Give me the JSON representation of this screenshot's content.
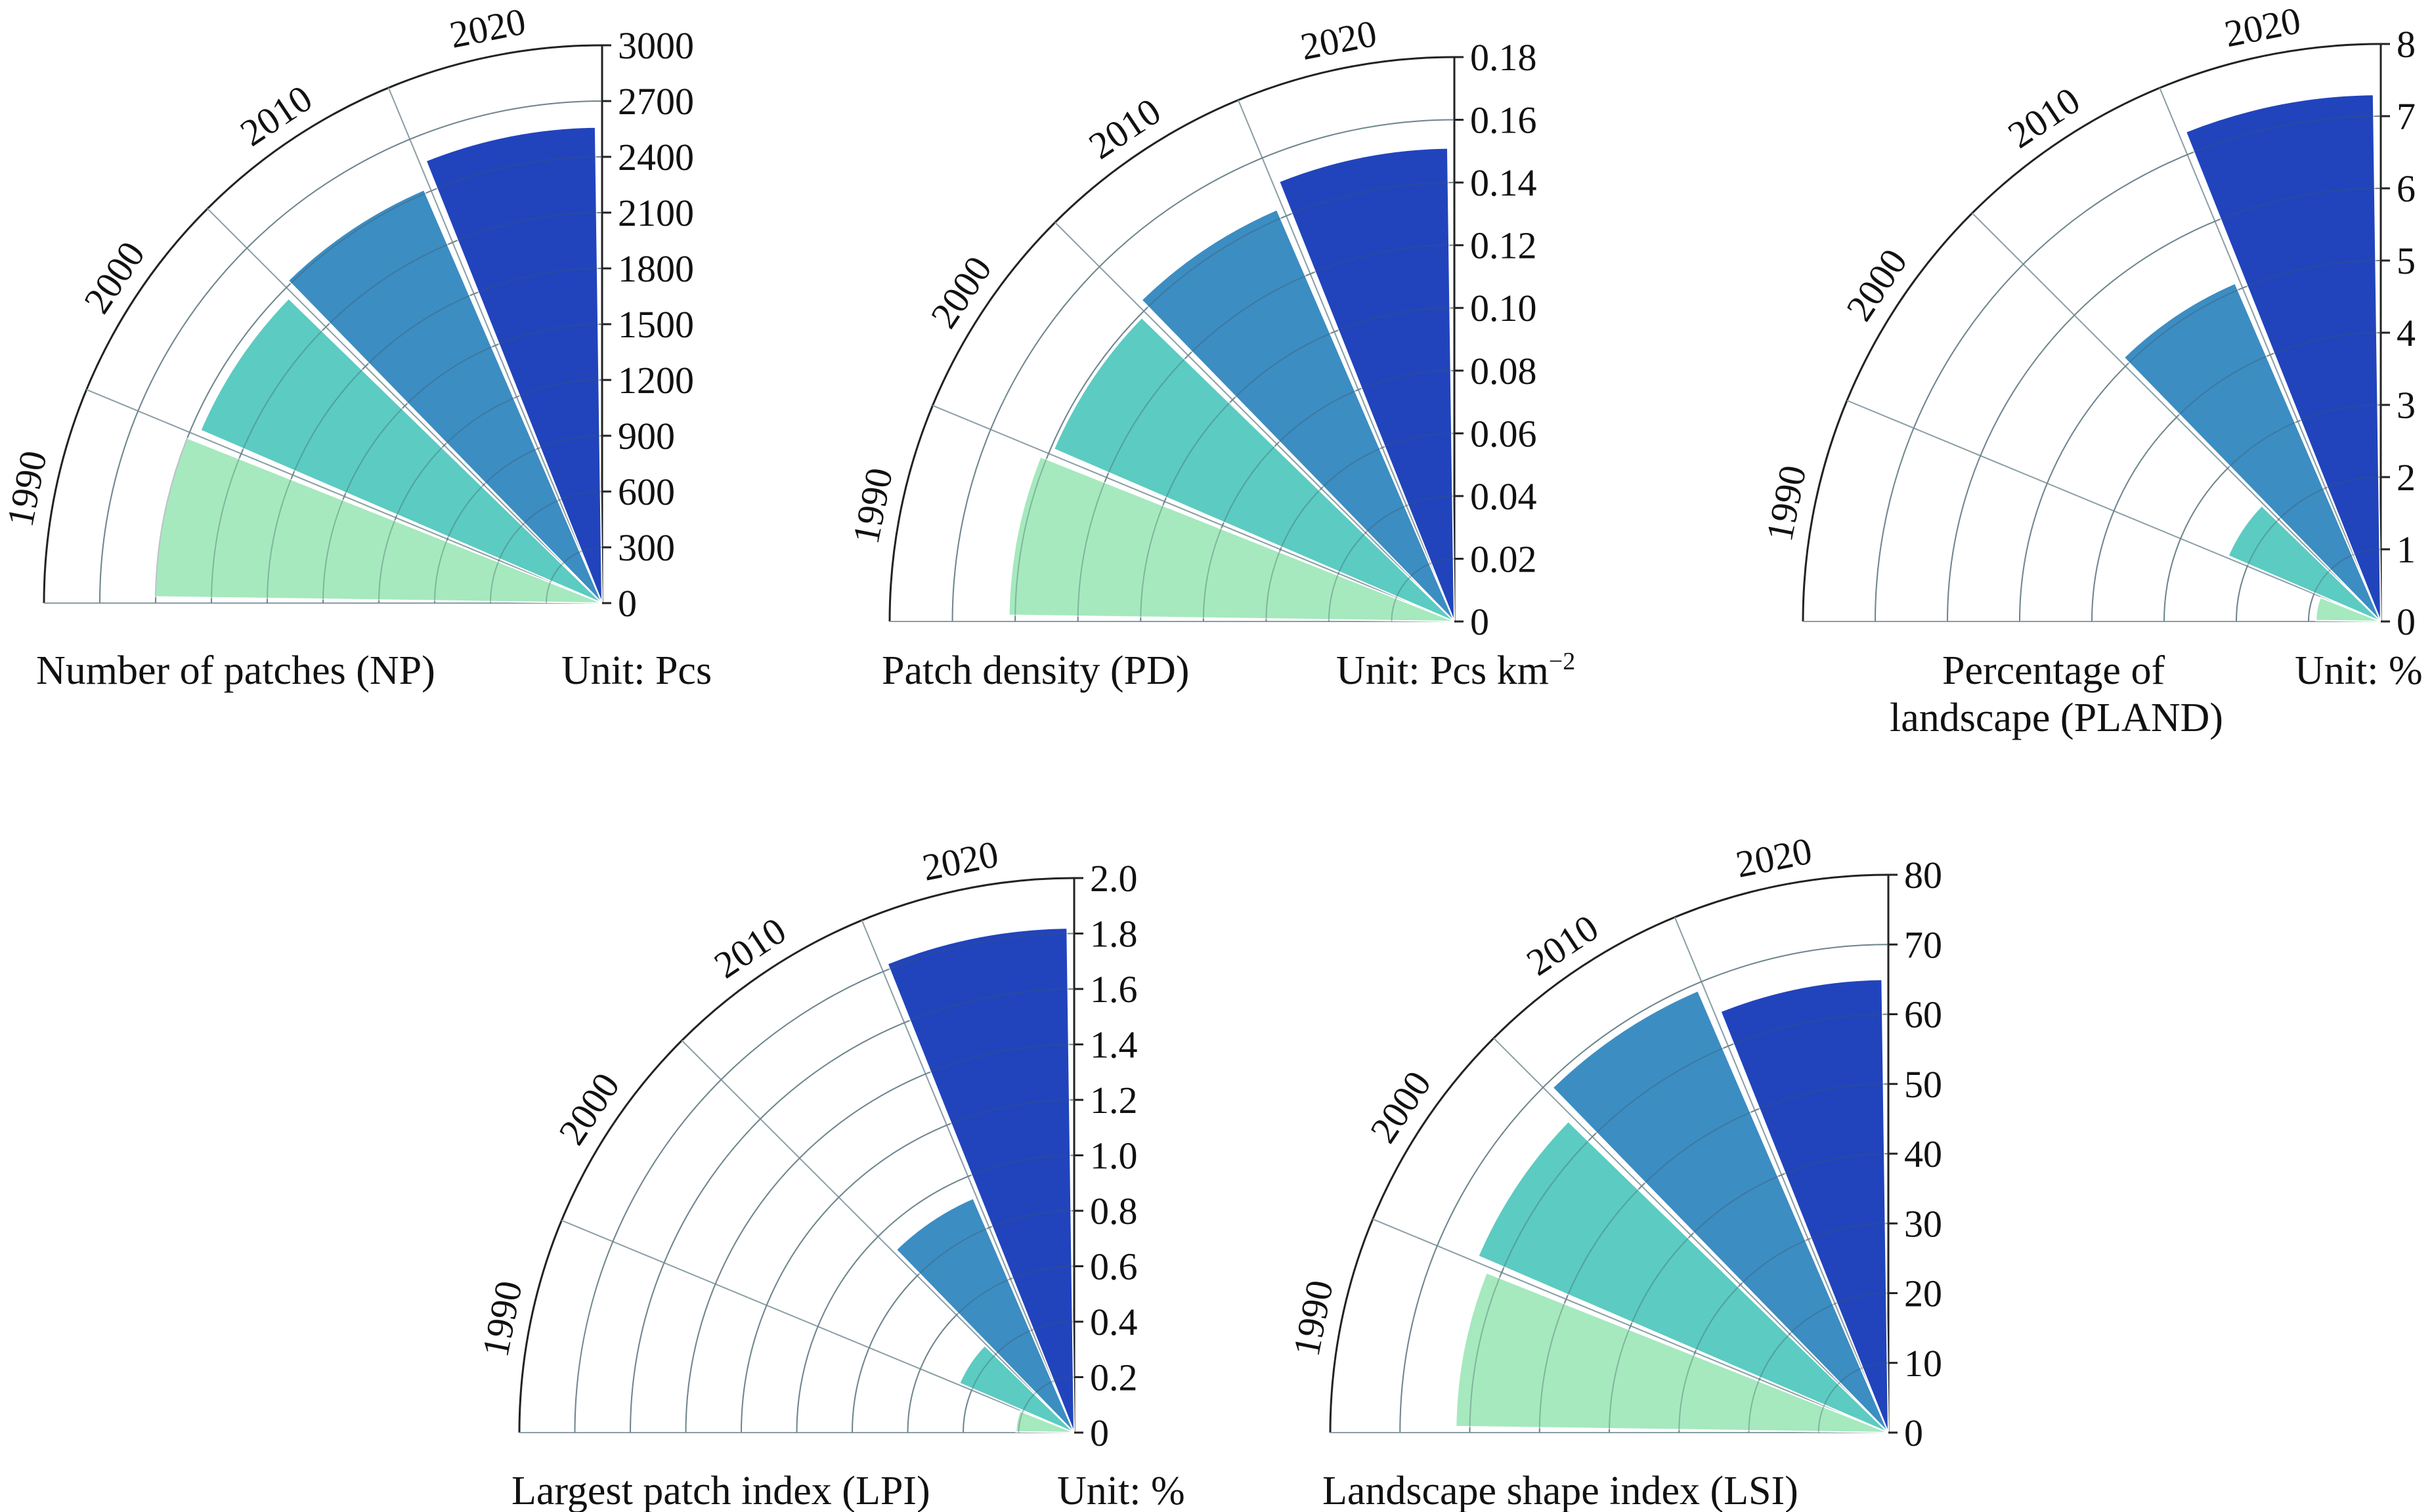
{
  "colors": {
    "1990": "#a6e9be",
    "2000": "#5ccbc2",
    "2010": "#3c8dc2",
    "2020": "#2144bd",
    "grid": "#8a9ea5",
    "axis": "#222222"
  },
  "chart_data": [
    {
      "type": "radial-bar",
      "title": "Number of patches (NP)",
      "unit": "Unit: Pcs",
      "unit_sup": "",
      "categories": [
        "1990",
        "2000",
        "2010",
        "2020"
      ],
      "values": [
        2400,
        2350,
        2420,
        2560
      ],
      "ylim": [
        0,
        3000
      ],
      "ticks": [
        "0",
        "300",
        "600",
        "900",
        "1200",
        "1500",
        "1800",
        "2100",
        "2400",
        "2700",
        "3000"
      ],
      "grid": true
    },
    {
      "type": "radial-bar",
      "title": "Patch density (PD)",
      "unit": "Unit: Pcs km",
      "unit_sup": "−2",
      "categories": [
        "1990",
        "2000",
        "2010",
        "2020"
      ],
      "values": [
        0.142,
        0.139,
        0.143,
        0.151
      ],
      "ylim": [
        0,
        0.18
      ],
      "ticks": [
        "0",
        "0.02",
        "0.04",
        "0.06",
        "0.08",
        "0.10",
        "0.12",
        "0.14",
        "0.16",
        "0.18"
      ],
      "grid": true
    },
    {
      "type": "radial-bar",
      "title": "Percentage of",
      "title_line2": "landscape (PLAND)",
      "unit": "Unit: %",
      "unit_sup": "",
      "categories": [
        "1990",
        "2000",
        "2010",
        "2020"
      ],
      "values": [
        0.9,
        2.3,
        5.1,
        7.3
      ],
      "ylim": [
        0,
        8
      ],
      "ticks": [
        "0",
        "1",
        "2",
        "3",
        "4",
        "5",
        "6",
        "7",
        "8"
      ],
      "grid": true
    },
    {
      "type": "radial-bar",
      "title": "Largest patch index (LPI)",
      "unit": "Unit: %",
      "unit_sup": "",
      "categories": [
        "1990",
        "2000",
        "2010",
        "2020"
      ],
      "values": [
        0.21,
        0.45,
        0.92,
        1.82
      ],
      "ylim": [
        0,
        2.0
      ],
      "ticks": [
        "0",
        "0.2",
        "0.4",
        "0.6",
        "0.8",
        "1.0",
        "1.2",
        "1.4",
        "1.6",
        "1.8",
        "2.0"
      ],
      "grid": true
    },
    {
      "type": "radial-bar",
      "title": "Landscape shape index (LSI)",
      "unit": "",
      "unit_sup": "",
      "categories": [
        "1990",
        "2000",
        "2010",
        "2020"
      ],
      "values": [
        62,
        64,
        69,
        65
      ],
      "ylim": [
        0,
        80
      ],
      "ticks": [
        "0",
        "10",
        "20",
        "30",
        "40",
        "50",
        "60",
        "70",
        "80"
      ],
      "grid": true
    }
  ]
}
